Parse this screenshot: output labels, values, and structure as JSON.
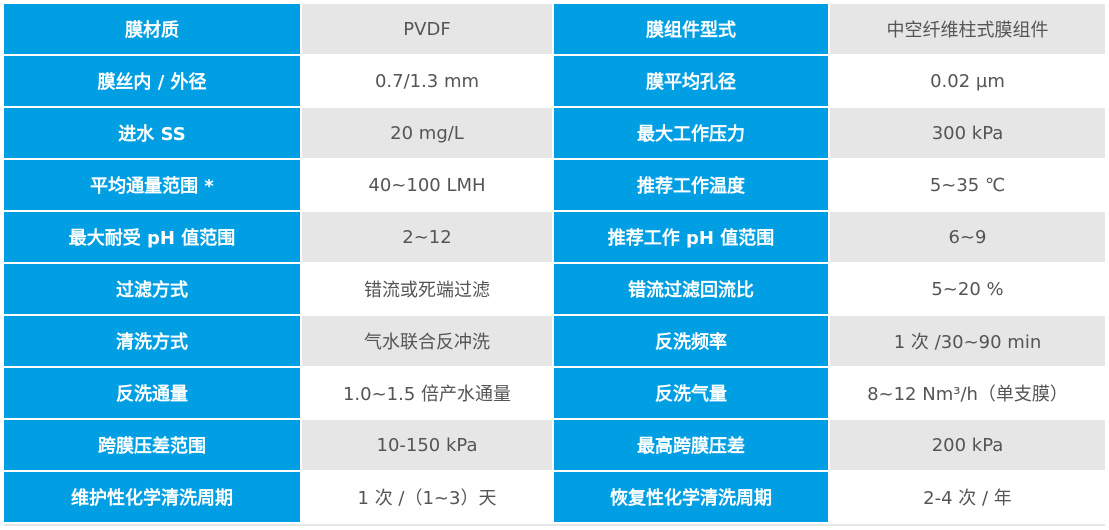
{
  "colors": {
    "label_bg": "#009fe3",
    "label_text": "#ffffff",
    "value_text": "#555555",
    "stripe_bg": "#e6e6e6"
  },
  "rows": [
    {
      "label1": "膜材质",
      "value1": "PVDF",
      "label2": "膜组件型式",
      "value2": "中空纤维柱式膜组件"
    },
    {
      "label1": "膜丝内 / 外径",
      "value1": "0.7/1.3 mm",
      "label2": "膜平均孔径",
      "value2": "0.02 µm"
    },
    {
      "label1": "进水 SS",
      "value1": "20 mg/L",
      "label2": "最大工作压力",
      "value2": "300 kPa"
    },
    {
      "label1": "平均通量范围 *",
      "value1": "40~100 LMH",
      "label2": "推荐工作温度",
      "value2": "5~35 ℃"
    },
    {
      "label1": "最大耐受 pH 值范围",
      "value1": "2~12",
      "label2": "推荐工作 pH 值范围",
      "value2": "6~9"
    },
    {
      "label1": "过滤方式",
      "value1": "错流或死端过滤",
      "label2": "错流过滤回流比",
      "value2": "5~20 %"
    },
    {
      "label1": "清洗方式",
      "value1": "气水联合反冲洗",
      "label2": "反洗频率",
      "value2": "1 次 /30~90 min"
    },
    {
      "label1": "反洗通量",
      "value1": "1.0~1.5 倍产水通量",
      "label2": "反洗气量",
      "value2": "8~12 Nm³/h（单支膜）"
    },
    {
      "label1": "跨膜压差范围",
      "value1": "10-150 kPa",
      "label2": "最高跨膜压差",
      "value2": "200 kPa"
    },
    {
      "label1": "维护性化学清洗周期",
      "value1": "1 次 /（1~3）天",
      "label2": "恢复性化学清洗周期",
      "value2": "2-4 次 / 年"
    }
  ]
}
